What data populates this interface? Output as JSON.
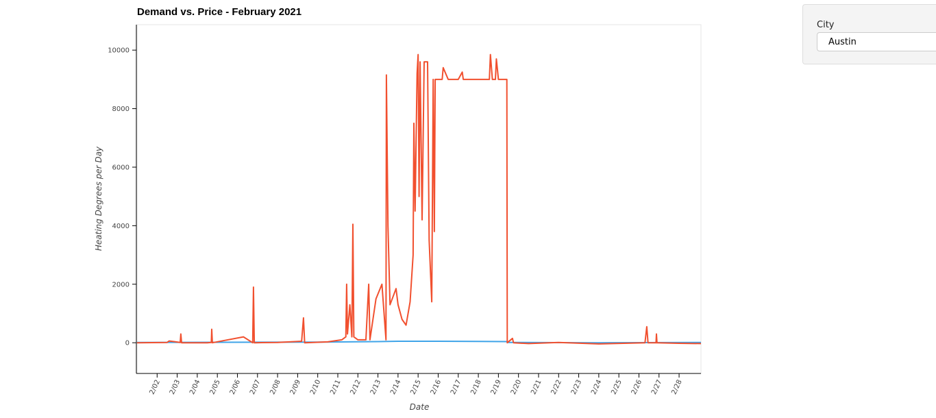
{
  "chart_data": {
    "type": "line",
    "title": "Demand vs. Price - February 2021",
    "x_label": "Date",
    "y_label": "Heating Degrees per Day",
    "xlim": [
      1,
      29.09
    ],
    "ylim": [
      -1050,
      10870
    ],
    "xticks": [
      {
        "value": 2,
        "label": "2/02"
      },
      {
        "value": 3,
        "label": "2/03"
      },
      {
        "value": 4,
        "label": "2/04"
      },
      {
        "value": 5,
        "label": "2/05"
      },
      {
        "value": 6,
        "label": "2/06"
      },
      {
        "value": 7,
        "label": "2/07"
      },
      {
        "value": 8,
        "label": "2/08"
      },
      {
        "value": 9,
        "label": "2/09"
      },
      {
        "value": 10,
        "label": "2/10"
      },
      {
        "value": 11,
        "label": "2/11"
      },
      {
        "value": 12,
        "label": "2/12"
      },
      {
        "value": 13,
        "label": "2/13"
      },
      {
        "value": 14,
        "label": "2/14"
      },
      {
        "value": 15,
        "label": "2/15"
      },
      {
        "value": 16,
        "label": "2/16"
      },
      {
        "value": 17,
        "label": "2/17"
      },
      {
        "value": 18,
        "label": "2/18"
      },
      {
        "value": 19,
        "label": "2/19"
      },
      {
        "value": 20,
        "label": "2/20"
      },
      {
        "value": 21,
        "label": "2/21"
      },
      {
        "value": 22,
        "label": "2/22"
      },
      {
        "value": 23,
        "label": "2/23"
      },
      {
        "value": 24,
        "label": "2/24"
      },
      {
        "value": 25,
        "label": "2/25"
      },
      {
        "value": 26,
        "label": "2/26"
      },
      {
        "value": 27,
        "label": "2/27"
      },
      {
        "value": 28,
        "label": "2/28"
      }
    ],
    "yticks": [
      0,
      2000,
      4000,
      6000,
      8000,
      10000
    ],
    "series": [
      {
        "color": "#3fa4e8",
        "x": [
          1,
          10,
          13,
          14,
          16,
          18,
          19.4,
          19.5,
          24,
          29.09
        ],
        "values": [
          10,
          20,
          40,
          50,
          50,
          45,
          40,
          10,
          0,
          10
        ]
      },
      {
        "color": "#f1502f",
        "x": [
          1,
          2.5,
          2.6,
          3.15,
          3.18,
          3.22,
          4.5,
          4.7,
          4.72,
          4.75,
          6.3,
          6.76,
          6.8,
          6.84,
          8,
          9.2,
          9.29,
          9.35,
          10.5,
          11.2,
          11.4,
          11.44,
          11.48,
          11.6,
          11.7,
          11.75,
          11.8,
          12,
          12.4,
          12.54,
          12.6,
          12.9,
          13.2,
          13.4,
          13.42,
          13.5,
          13.6,
          13.9,
          14.0,
          14.2,
          14.4,
          14.6,
          14.75,
          14.79,
          14.85,
          14.95,
          15.0,
          15.05,
          15.1,
          15.2,
          15.3,
          15.47,
          15.55,
          15.68,
          15.75,
          15.81,
          15.85,
          15.9,
          16.2,
          16.25,
          16.5,
          17.0,
          17.2,
          17.25,
          18.0,
          18.55,
          18.6,
          18.7,
          18.85,
          18.9,
          19.0,
          19.42,
          19.44,
          19.7,
          19.75,
          20.5,
          22,
          24,
          26.3,
          26.39,
          26.45,
          26.85,
          26.87,
          26.9,
          28,
          29.09
        ],
        "values": [
          0,
          10,
          60,
          10,
          300,
          0,
          0,
          10,
          460,
          0,
          200,
          0,
          1900,
          0,
          10,
          50,
          850,
          0,
          30,
          100,
          200,
          2000,
          300,
          1300,
          200,
          4050,
          200,
          100,
          100,
          2000,
          100,
          1500,
          2000,
          100,
          9150,
          4000,
          1300,
          1850,
          1300,
          800,
          600,
          1400,
          3000,
          7500,
          4500,
          9200,
          9850,
          5000,
          9600,
          4200,
          9600,
          9600,
          3500,
          1400,
          9000,
          3800,
          9000,
          9000,
          9000,
          9400,
          9000,
          9000,
          9250,
          9000,
          9000,
          9000,
          9850,
          9000,
          9000,
          9700,
          9000,
          9000,
          0,
          150,
          0,
          -30,
          10,
          -40,
          0,
          550,
          0,
          0,
          300,
          0,
          -20,
          -30
        ]
      }
    ]
  },
  "widget": {
    "label": "City",
    "value": "Austin"
  }
}
